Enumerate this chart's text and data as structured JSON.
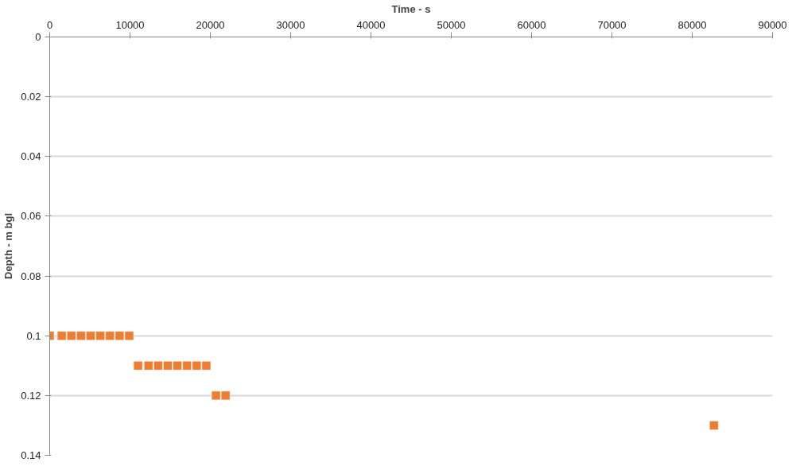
{
  "chart_data": {
    "type": "scatter",
    "xlabel": "Time - s",
    "ylabel": "Depth - m bgl",
    "x": [
      0,
      1500,
      2700,
      3900,
      5100,
      6300,
      7500,
      8700,
      9900,
      11000,
      12300,
      13500,
      14700,
      15900,
      17100,
      18300,
      19500,
      20700,
      21900,
      82700
    ],
    "values": [
      0.1,
      0.1,
      0.1,
      0.1,
      0.1,
      0.1,
      0.1,
      0.1,
      0.1,
      0.11,
      0.11,
      0.11,
      0.11,
      0.11,
      0.11,
      0.11,
      0.11,
      0.12,
      0.12,
      0.13
    ],
    "color": "#ed7d31",
    "marker": "square",
    "xlim": [
      0,
      90000
    ],
    "xticks": [
      0,
      10000,
      20000,
      30000,
      40000,
      50000,
      60000,
      70000,
      80000,
      90000
    ],
    "ylim": [
      0.14,
      0
    ],
    "yticks": [
      0,
      0.02,
      0.04,
      0.06,
      0.08,
      0.1,
      0.12,
      0.14
    ],
    "grid": "y"
  }
}
